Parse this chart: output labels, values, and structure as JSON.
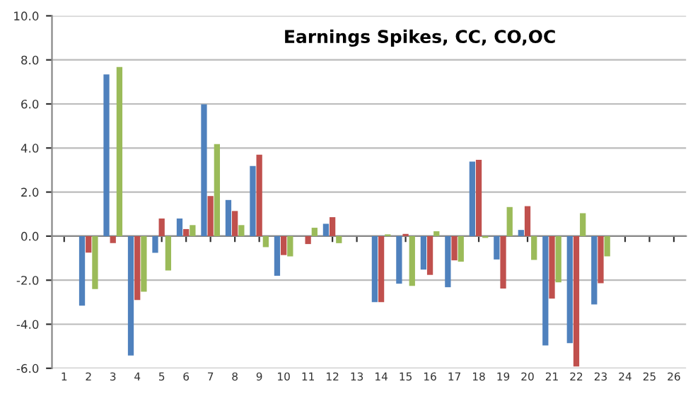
{
  "chart_data": {
    "type": "bar",
    "title": "Earnings Spikes, CC, CO,OC",
    "categories": [
      "1",
      "2",
      "3",
      "4",
      "5",
      "6",
      "7",
      "8",
      "9",
      "10",
      "11",
      "12",
      "13",
      "14",
      "15",
      "16",
      "17",
      "18",
      "19",
      "20",
      "21",
      "22",
      "23",
      "24",
      "25",
      "26"
    ],
    "series": [
      {
        "color": "#4f81bd",
        "values": [
          null,
          -3.16,
          7.34,
          -5.42,
          -0.76,
          0.8,
          5.98,
          1.64,
          3.18,
          -1.8,
          null,
          0.56,
          null,
          -3.0,
          -2.16,
          -1.52,
          -2.32,
          3.38,
          -1.06,
          0.28,
          -4.96,
          -4.86,
          -3.1,
          null,
          null,
          null
        ]
      },
      {
        "color": "#c0504d",
        "values": [
          null,
          -0.75,
          -0.32,
          -2.9,
          0.8,
          0.32,
          1.82,
          1.14,
          3.7,
          -0.86,
          -0.36,
          0.86,
          null,
          -3.0,
          0.1,
          -1.76,
          -1.1,
          3.46,
          -2.38,
          1.36,
          -2.84,
          -5.92,
          -2.14,
          null,
          null,
          null
        ]
      },
      {
        "color": "#9bbb59",
        "values": [
          null,
          -2.4,
          7.68,
          -2.52,
          -1.56,
          0.5,
          4.18,
          0.5,
          -0.5,
          -0.92,
          0.38,
          -0.32,
          null,
          0.08,
          -2.26,
          0.22,
          -1.16,
          -0.08,
          1.32,
          -1.08,
          -2.1,
          1.04,
          -0.92,
          null,
          null,
          null
        ]
      }
    ],
    "ylim": [
      -6,
      10
    ],
    "yticks": [
      {
        "value": -6,
        "label": "-6.0"
      },
      {
        "value": -4,
        "label": "-4.0"
      },
      {
        "value": -2,
        "label": "-2.0"
      },
      {
        "value": 0,
        "label": "0.0"
      },
      {
        "value": 2,
        "label": "2.0"
      },
      {
        "value": 4,
        "label": "4.0"
      },
      {
        "value": 6,
        "label": "6.0"
      },
      {
        "value": 8,
        "label": "8.0"
      },
      {
        "value": 10,
        "label": "10.0"
      }
    ],
    "grid": "y"
  }
}
